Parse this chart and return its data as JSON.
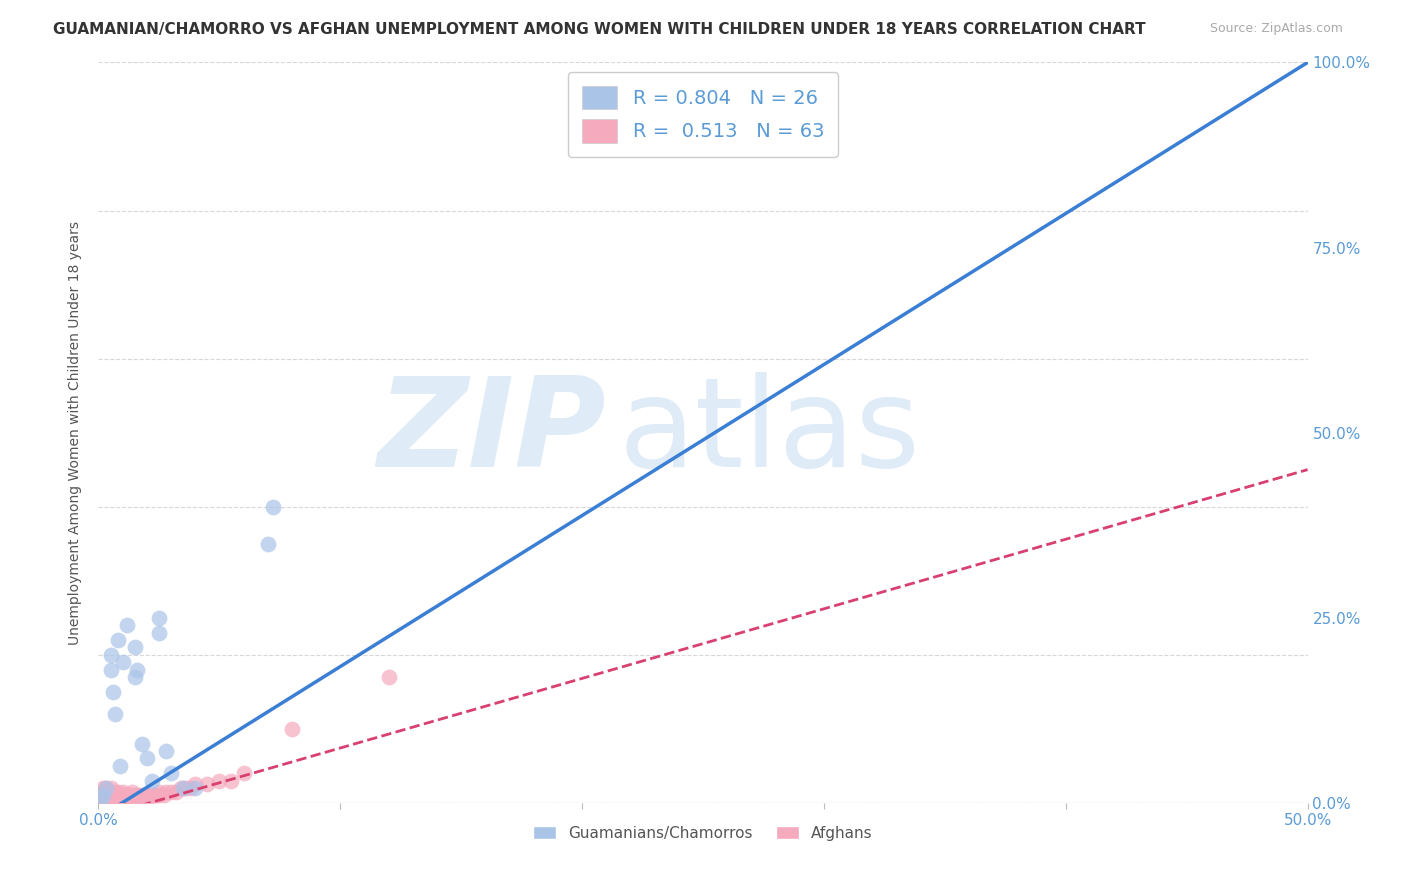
{
  "title": "GUAMANIAN/CHAMORRO VS AFGHAN UNEMPLOYMENT AMONG WOMEN WITH CHILDREN UNDER 18 YEARS CORRELATION CHART",
  "source": "Source: ZipAtlas.com",
  "ylabel": "Unemployment Among Women with Children Under 18 years",
  "background_color": "#ffffff",
  "guam_color": "#aac4e8",
  "afghan_color": "#f5aabe",
  "guam_line_color": "#3a7fd4",
  "afghan_line_color": "#d84070",
  "watermark_zip": "ZIP",
  "watermark_atlas": "atlas",
  "guam_r": 0.804,
  "guam_n": 26,
  "afghan_r": 0.513,
  "afghan_n": 63,
  "guam_scatter_x": [
    0.001,
    0.002,
    0.003,
    0.005,
    0.005,
    0.006,
    0.007,
    0.008,
    0.009,
    0.01,
    0.012,
    0.015,
    0.015,
    0.016,
    0.018,
    0.02,
    0.022,
    0.025,
    0.025,
    0.028,
    0.03,
    0.035,
    0.04,
    0.07,
    0.072,
    0.21
  ],
  "guam_scatter_y": [
    0.005,
    0.01,
    0.02,
    0.18,
    0.2,
    0.15,
    0.12,
    0.22,
    0.05,
    0.19,
    0.24,
    0.21,
    0.17,
    0.18,
    0.08,
    0.06,
    0.03,
    0.25,
    0.23,
    0.07,
    0.04,
    0.02,
    0.02,
    0.35,
    0.4,
    0.97
  ],
  "afghan_scatter_x": [
    0.001,
    0.001,
    0.001,
    0.002,
    0.002,
    0.002,
    0.002,
    0.003,
    0.003,
    0.003,
    0.004,
    0.004,
    0.004,
    0.005,
    0.005,
    0.005,
    0.006,
    0.006,
    0.007,
    0.007,
    0.007,
    0.008,
    0.008,
    0.008,
    0.009,
    0.009,
    0.01,
    0.01,
    0.01,
    0.011,
    0.011,
    0.012,
    0.013,
    0.013,
    0.014,
    0.015,
    0.015,
    0.016,
    0.017,
    0.018,
    0.019,
    0.02,
    0.02,
    0.021,
    0.022,
    0.023,
    0.024,
    0.025,
    0.025,
    0.027,
    0.028,
    0.03,
    0.032,
    0.034,
    0.036,
    0.038,
    0.04,
    0.045,
    0.05,
    0.055,
    0.06,
    0.08,
    0.12
  ],
  "afghan_scatter_y": [
    0.005,
    0.01,
    0.015,
    0.005,
    0.01,
    0.015,
    0.02,
    0.005,
    0.01,
    0.02,
    0.005,
    0.01,
    0.015,
    0.005,
    0.01,
    0.02,
    0.005,
    0.01,
    0.005,
    0.01,
    0.015,
    0.005,
    0.01,
    0.015,
    0.005,
    0.01,
    0.005,
    0.01,
    0.015,
    0.005,
    0.01,
    0.01,
    0.005,
    0.01,
    0.015,
    0.005,
    0.01,
    0.01,
    0.01,
    0.005,
    0.01,
    0.005,
    0.01,
    0.01,
    0.01,
    0.01,
    0.01,
    0.01,
    0.015,
    0.01,
    0.015,
    0.015,
    0.015,
    0.02,
    0.02,
    0.02,
    0.025,
    0.025,
    0.03,
    0.03,
    0.04,
    0.1,
    0.17
  ],
  "guam_line_x0": 0.0,
  "guam_line_y0": -0.02,
  "guam_line_x1": 0.5,
  "guam_line_y1": 1.0,
  "afghan_line_x0": 0.0,
  "afghan_line_y0": -0.02,
  "afghan_line_x1": 0.5,
  "afghan_line_y1": 0.45,
  "xlim": [
    0.0,
    0.5
  ],
  "ylim": [
    0.0,
    1.0
  ],
  "x_ticks": [
    0.0,
    0.1,
    0.2,
    0.3,
    0.4,
    0.5
  ],
  "y_ticks": [
    0.0,
    0.25,
    0.5,
    0.75,
    1.0
  ],
  "grid_color": "#d8d8d8",
  "title_fontsize": 11,
  "axis_label_fontsize": 10,
  "tick_fontsize": 11,
  "legend_fontsize": 14,
  "tick_color": "#5b9bd5"
}
